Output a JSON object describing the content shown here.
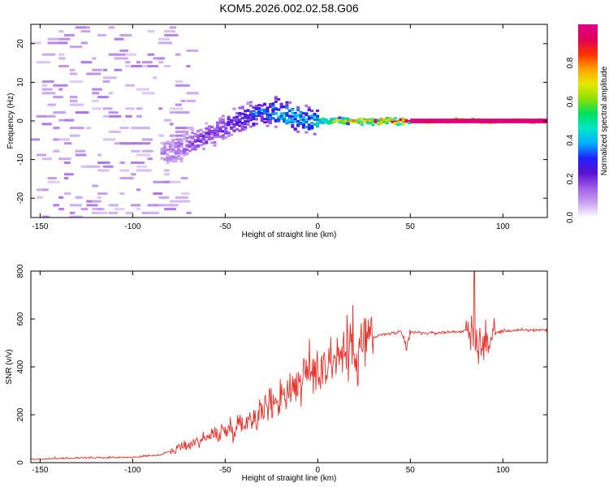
{
  "figure_title": "KOM5.2026.002.02.58.G06",
  "chart_data": [
    {
      "type": "heatmap",
      "title": "KOM5.2026.002.02.58.G06",
      "xlabel": "Height of straight line (km)",
      "ylabel": "Frequency (Hz)",
      "xlim": [
        -155,
        124
      ],
      "ylim": [
        -25,
        25
      ],
      "xticks": [
        -150,
        -100,
        -50,
        0,
        50,
        100
      ],
      "yticks": [
        -20,
        -10,
        0,
        10,
        20
      ],
      "colorbar": {
        "label": "Normalized spectral amplitude",
        "range": [
          0,
          1
        ],
        "ticks": [
          0.0,
          0.2,
          0.4,
          0.6,
          0.8
        ],
        "colormap": [
          "#ffffff",
          "#c7a3f0",
          "#a05ce6",
          "#5a10d0",
          "#2222ff",
          "#00b0ff",
          "#00e6c8",
          "#00e060",
          "#8ee000",
          "#e8e800",
          "#ffa000",
          "#ff3000",
          "#e0005a",
          "#e0008c"
        ]
      },
      "ridge": {
        "description_x": [
          -80,
          -60,
          -45,
          -30,
          -20,
          -5,
          0,
          20,
          50,
          124
        ],
        "freq_hz": [
          -8,
          -4,
          0,
          2.5,
          2,
          0,
          0,
          0,
          0,
          0
        ],
        "amplitude": [
          0.12,
          0.2,
          0.25,
          0.35,
          0.45,
          0.4,
          0.55,
          0.75,
          1.0,
          1.0
        ]
      }
    },
    {
      "type": "line",
      "title": "",
      "xlabel": "Height of straight line (km)",
      "ylabel": "SNR (v/v)",
      "xlim": [
        -155,
        124
      ],
      "ylim": [
        0,
        800
      ],
      "xticks": [
        -150,
        -100,
        -50,
        0,
        50,
        100
      ],
      "yticks": [
        0,
        200,
        400,
        600,
        800
      ],
      "series": [
        {
          "name": "SNR",
          "color": "#e8302a",
          "x": [
            -155,
            -140,
            -120,
            -100,
            -85,
            -75,
            -65,
            -55,
            -45,
            -35,
            -25,
            -15,
            -5,
            5,
            15,
            25,
            35,
            45,
            48,
            50,
            60,
            70,
            80,
            85,
            90,
            95,
            100,
            110,
            124
          ],
          "y": [
            12,
            15,
            18,
            20,
            30,
            60,
            90,
            120,
            150,
            190,
            250,
            310,
            370,
            420,
            470,
            510,
            535,
            545,
            470,
            545,
            540,
            545,
            550,
            520,
            480,
            540,
            550,
            553,
            555
          ]
        }
      ]
    }
  ]
}
